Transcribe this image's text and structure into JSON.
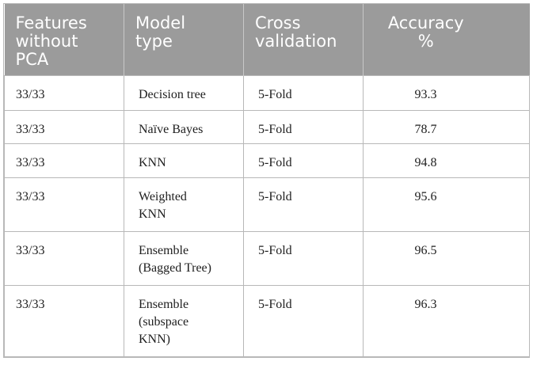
{
  "table": {
    "headers": [
      [
        "Features",
        "without",
        "PCA"
      ],
      [
        "Model",
        "type"
      ],
      [
        "Cross",
        "validation"
      ],
      [
        "Accuracy",
        "%"
      ]
    ],
    "rows": [
      {
        "features": "33/33",
        "model": [
          "Decision tree"
        ],
        "cv": "5-Fold",
        "accuracy": "93.3"
      },
      {
        "features": "33/33",
        "model": [
          "Naïve Bayes"
        ],
        "cv": "5-Fold",
        "accuracy": "78.7"
      },
      {
        "features": "33/33",
        "model": [
          "KNN"
        ],
        "cv": "5-Fold",
        "accuracy": "94.8"
      },
      {
        "features": "33/33",
        "model": [
          "Weighted",
          "KNN"
        ],
        "cv": "5-Fold",
        "accuracy": "95.6"
      },
      {
        "features": "33/33",
        "model": [
          "Ensemble",
          "(Bagged Tree)"
        ],
        "cv": "5-Fold",
        "accuracy": "96.5"
      },
      {
        "features": "33/33",
        "model": [
          "Ensemble",
          "(subspace",
          "KNN)"
        ],
        "cv": "5-Fold",
        "accuracy": "96.3"
      }
    ]
  },
  "colors": {
    "header_bg": "#9b9b9b",
    "header_text": "#ffffff",
    "grid": "#b8b8b8",
    "body_text": "#1e1e1e"
  }
}
